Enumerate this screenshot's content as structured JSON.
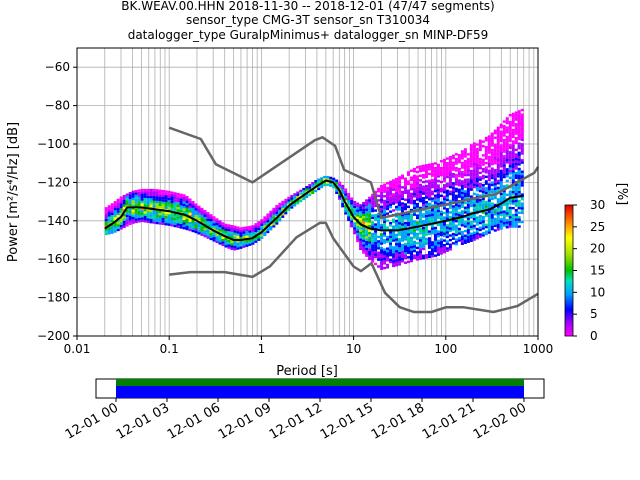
{
  "title": {
    "line1": "BK.WEAV.00.HHN   2018-11-30 -- 2018-12-01  (47/47 segments)",
    "line2": "sensor_type CMG-3T sensor_sn T310034",
    "line3": "datalogger_type GuralpMinimus+ datalogger_sn MINP-DF59"
  },
  "colorbar": {
    "label": "[%]",
    "ticks": [
      "0",
      "5",
      "10",
      "15",
      "20",
      "25",
      "30"
    ],
    "range": [
      0,
      30
    ]
  },
  "timeline": {
    "tick_labels": [
      "12-01 00",
      "12-01 03",
      "12-01 06",
      "12-01 09",
      "12-01 12",
      "12-01 15",
      "12-01 18",
      "12-01 21",
      "12-02 00"
    ],
    "colors": {
      "top": "#008000",
      "bottom": "#0000ff"
    }
  },
  "chart_data": {
    "type": "heatmap",
    "title": "BK.WEAV.00.HHN   2018-11-30 -- 2018-12-01  (47/47 segments)",
    "xlabel": "Period [s]",
    "ylabel": "Power [m²/s⁴/Hz] [dB]",
    "xscale": "log",
    "xlim": [
      0.01,
      1000
    ],
    "ylim": [
      -200,
      -50
    ],
    "grid": true,
    "x_ticks": [
      0.01,
      0.1,
      1,
      10,
      100,
      1000
    ],
    "x_tick_labels": [
      "0.01",
      "0.1",
      "1",
      "10",
      "100",
      "1000"
    ],
    "y_ticks": [
      -200,
      -180,
      -160,
      -140,
      -120,
      -100,
      -80,
      -60
    ],
    "y_tick_labels": [
      "−200",
      "−180",
      "−160",
      "−140",
      "−120",
      "−100",
      "−80",
      "−60"
    ],
    "series": [
      {
        "name": "",
        "role": "nhnm",
        "color": "#666666",
        "x": [
          0.1,
          0.22,
          0.32,
          0.8,
          3.8,
          4.6,
          6.3,
          7.9,
          15.4,
          20,
          354,
          912,
          1000
        ],
        "y": [
          -91.5,
          -97.4,
          -110.5,
          -120.0,
          -98.0,
          -96.5,
          -101.0,
          -113.5,
          -120.0,
          -138.5,
          -126.0,
          -115.0,
          -112.0
        ]
      },
      {
        "name": "",
        "role": "nlnm",
        "color": "#666666",
        "x": [
          0.1,
          0.17,
          0.4,
          0.8,
          1.24,
          2.4,
          4.3,
          5.0,
          6.0,
          10.0,
          12.0,
          15.6,
          21.9,
          31.6,
          45.0,
          70.0,
          101.0,
          154.0,
          328.0,
          600.0,
          1000.0
        ],
        "y": [
          -168.0,
          -166.7,
          -166.7,
          -169.2,
          -163.7,
          -148.6,
          -141.1,
          -141.1,
          -149.0,
          -163.8,
          -166.2,
          -162.1,
          -177.5,
          -185.0,
          -187.5,
          -187.5,
          -185.0,
          -185.0,
          -187.5,
          -184.4,
          -178.0
        ]
      },
      {
        "name": "",
        "role": "mean",
        "color": "#000000",
        "x": [
          0.02,
          0.025,
          0.03,
          0.035,
          0.05,
          0.1,
          0.15,
          0.2,
          0.3,
          0.4,
          0.5,
          0.6,
          0.8,
          1.0,
          1.5,
          2.0,
          3.0,
          4.0,
          5.0,
          6.0,
          7.0,
          8.0,
          10.0,
          12.0,
          15.0,
          20.0,
          30.0,
          50.0,
          80.0,
          100.0,
          150.0,
          200.0,
          300.0,
          400.0,
          500.0,
          700.0
        ],
        "y": [
          -144.0,
          -141.0,
          -138.0,
          -133.0,
          -133.0,
          -135.0,
          -137.0,
          -140.0,
          -145.0,
          -148.0,
          -150.0,
          -150.0,
          -149.0,
          -146.0,
          -138.0,
          -132.0,
          -126.0,
          -122.0,
          -119.0,
          -120.0,
          -124.0,
          -130.0,
          -138.0,
          -142.0,
          -144.0,
          -145.0,
          -145.0,
          -143.0,
          -141.0,
          -140.0,
          -138.0,
          -136.0,
          -134.0,
          -131.0,
          -128.0,
          -127.0
        ]
      }
    ],
    "psd_band": {
      "x": [
        0.02,
        0.025,
        0.03,
        0.04,
        0.05,
        0.07,
        0.1,
        0.15,
        0.2,
        0.3,
        0.4,
        0.5,
        0.6,
        0.8,
        1.0,
        1.5,
        2.0,
        3.0,
        4.0,
        5.0,
        6.0,
        7.0,
        8.0,
        10.0,
        12.0,
        15.0,
        20.0,
        30.0,
        50.0,
        80.0,
        100.0,
        150.0,
        200.0,
        300.0,
        400.0,
        500.0,
        700.0
      ],
      "low": [
        -147.0,
        -146.0,
        -144.0,
        -141.0,
        -140.0,
        -141.0,
        -142.0,
        -144.0,
        -146.0,
        -150.0,
        -153.0,
        -155.0,
        -154.0,
        -152.0,
        -149.0,
        -141.0,
        -134.0,
        -128.0,
        -124.0,
        -121.0,
        -122.0,
        -128.0,
        -135.0,
        -145.0,
        -155.0,
        -160.0,
        -165.0,
        -163.0,
        -160.0,
        -158.0,
        -156.0,
        -152.0,
        -150.0,
        -146.0,
        -144.0,
        -143.0,
        -143.0
      ],
      "high": [
        -134.0,
        -131.0,
        -128.0,
        -125.0,
        -124.0,
        -124.0,
        -125.0,
        -127.0,
        -132.0,
        -138.0,
        -142.0,
        -143.0,
        -144.0,
        -143.0,
        -140.0,
        -132.0,
        -128.0,
        -123.0,
        -119.0,
        -117.0,
        -118.0,
        -120.0,
        -123.0,
        -130.0,
        -132.0,
        -128.0,
        -122.0,
        -118.0,
        -112.0,
        -110.0,
        -108.0,
        -104.0,
        -100.0,
        -96.0,
        -90.0,
        -85.0,
        -82.0
      ]
    }
  }
}
